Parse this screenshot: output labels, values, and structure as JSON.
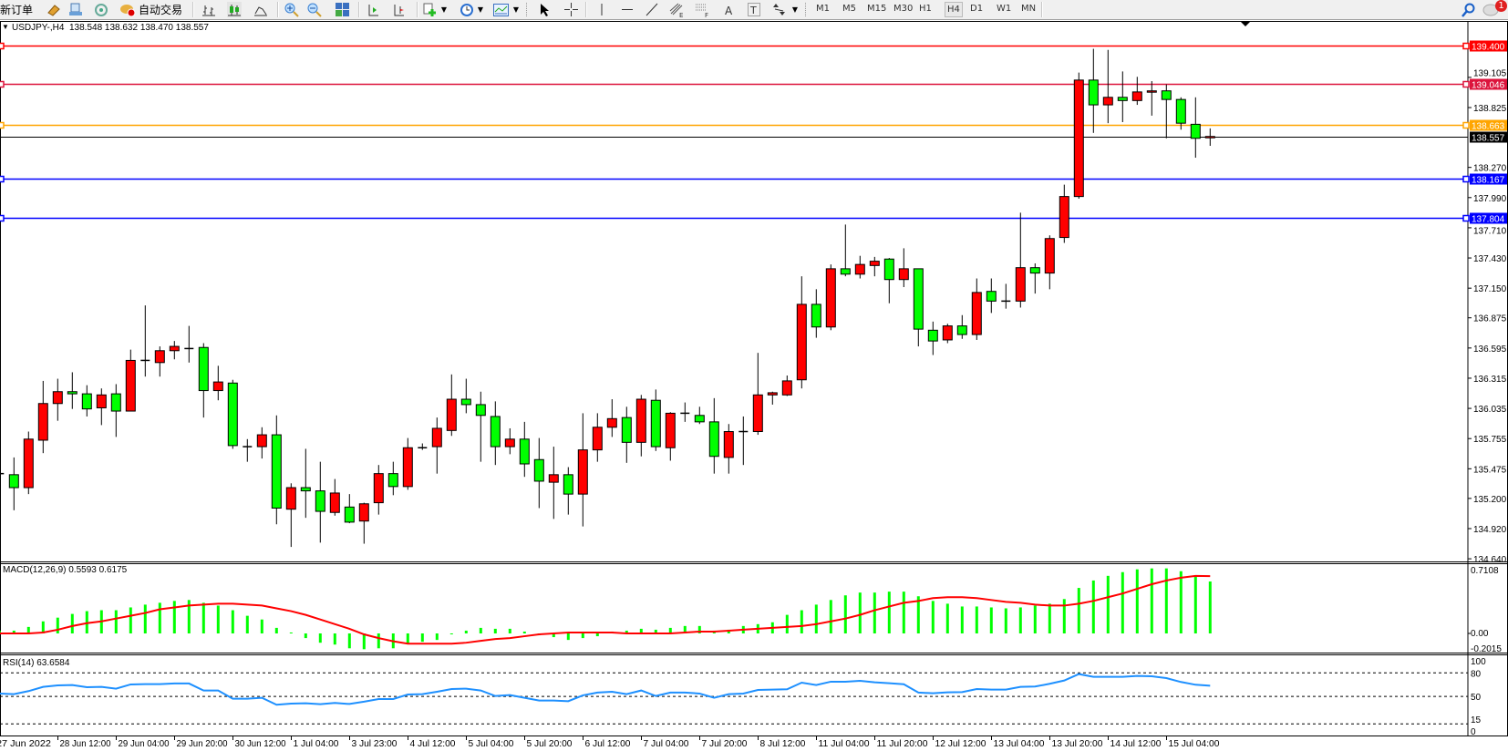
{
  "toolbar": {
    "new_order": "新订单",
    "autotrading": "自动交易",
    "icons": [
      "market-watch-icon",
      "navigator-icon",
      "signals-icon",
      "autotrading-icon",
      "bar-chart-icon",
      "candlestick-icon",
      "line-chart-icon",
      "zoom-in-icon",
      "zoom-out-icon",
      "tile-windows-icon",
      "auto-scroll-icon",
      "chart-shift-icon",
      "new-chart-icon",
      "periodicity-icon",
      "templates-icon",
      "cursor-icon",
      "crosshair-icon",
      "vertical-line-icon",
      "horizontal-line-icon",
      "trendline-icon",
      "fibonacci-expansion-icon",
      "fibonacci-fan-icon",
      "text-icon",
      "text-label-icon",
      "arrows-icon",
      "search-icon",
      "chat-icon"
    ],
    "timeframes": [
      "M1",
      "M5",
      "M15",
      "M30",
      "H1",
      "H4",
      "D1",
      "W1",
      "MN"
    ],
    "active_timeframe": "H4",
    "chat_badge": "1"
  },
  "chart": {
    "symbol_line": "USDJPY-,H4  138.548 138.632 138.470 138.557",
    "macd_label": "MACD(12,26,9) 0.5593 0.6175",
    "rsi_label": "RSI(14) 63.6584",
    "price_ticks": [
      "139.105",
      "138.825",
      "138.270",
      "137.990",
      "137.710",
      "137.430",
      "137.150",
      "136.875",
      "136.595",
      "136.315",
      "136.035",
      "135.755",
      "135.475",
      "135.200",
      "134.920",
      "134.640"
    ],
    "macd_ticks": [
      "0.7108",
      "0.00",
      "-0.2015"
    ],
    "rsi_ticks": [
      "100",
      "80",
      "50",
      "15",
      "0"
    ],
    "rsi_levels": [
      80,
      50,
      15
    ],
    "hlines": [
      {
        "price": "139.400",
        "color": "#ff0000"
      },
      {
        "price": "139.046",
        "color": "#dc143c"
      },
      {
        "price": "138.663",
        "color": "#ffa500"
      },
      {
        "price": "138.557",
        "color": "#000000"
      },
      {
        "price": "138.167",
        "color": "#0000ff"
      },
      {
        "price": "137.804",
        "color": "#0000ff"
      }
    ],
    "date_labels": [
      "27 Jun 2022",
      "28 Jun 12:00",
      "29 Jun 04:00",
      "29 Jun 20:00",
      "30 Jun 12:00",
      "1 Jul 04:00",
      "3 Jul 23:00",
      "4 Jul 12:00",
      "5 Jul 04:00",
      "5 Jul 20:00",
      "6 Jul 12:00",
      "7 Jul 04:00",
      "7 Jul 20:00",
      "8 Jul 12:00",
      "11 Jul 04:00",
      "11 Jul 20:00",
      "12 Jul 12:00",
      "13 Jul 04:00",
      "13 Jul 20:00",
      "14 Jul 12:00",
      "15 Jul 04:00"
    ],
    "colors": {
      "bull": "#ff0000",
      "bear": "#00ff00",
      "macd_hist": "#00ff00",
      "macd_signal": "#ff0000",
      "rsi": "#1e90ff"
    }
  },
  "chart_data": {
    "type": "candlestick",
    "symbol": "USDJPY-",
    "timeframe": "H4",
    "ylim": [
      134.64,
      139.4
    ],
    "ohlc": [
      [
        135.43,
        135.44,
        135.42,
        135.43
      ],
      [
        135.42,
        135.58,
        135.09,
        135.3
      ],
      [
        135.3,
        135.82,
        135.24,
        135.75
      ],
      [
        135.74,
        136.29,
        135.62,
        136.08
      ],
      [
        136.08,
        136.31,
        135.92,
        136.19
      ],
      [
        136.19,
        136.37,
        136.03,
        136.17
      ],
      [
        136.17,
        136.25,
        135.96,
        136.03
      ],
      [
        136.04,
        136.22,
        135.88,
        136.16
      ],
      [
        136.17,
        136.26,
        135.77,
        136.01
      ],
      [
        136.01,
        136.58,
        136.01,
        136.48
      ],
      [
        136.48,
        136.99,
        136.33,
        136.48
      ],
      [
        136.46,
        136.61,
        136.33,
        136.57
      ],
      [
        136.57,
        136.66,
        136.49,
        136.61
      ],
      [
        136.59,
        136.8,
        136.46,
        136.59
      ],
      [
        136.6,
        136.64,
        135.95,
        136.2
      ],
      [
        136.2,
        136.43,
        136.11,
        136.28
      ],
      [
        136.27,
        136.3,
        135.66,
        135.69
      ],
      [
        135.68,
        135.75,
        135.54,
        135.68
      ],
      [
        135.68,
        135.86,
        135.57,
        135.79
      ],
      [
        135.79,
        135.97,
        134.96,
        135.11
      ],
      [
        135.1,
        135.34,
        134.75,
        135.3
      ],
      [
        135.3,
        135.66,
        135.02,
        135.27
      ],
      [
        135.27,
        135.54,
        134.79,
        135.08
      ],
      [
        135.07,
        135.38,
        135.04,
        135.25
      ],
      [
        135.12,
        135.24,
        134.97,
        134.98
      ],
      [
        134.99,
        135.16,
        134.78,
        135.15
      ],
      [
        135.16,
        135.51,
        135.05,
        135.43
      ],
      [
        135.43,
        135.54,
        135.23,
        135.31
      ],
      [
        135.31,
        135.76,
        135.28,
        135.67
      ],
      [
        135.67,
        135.71,
        135.65,
        135.67
      ],
      [
        135.68,
        135.95,
        135.43,
        135.85
      ],
      [
        135.83,
        136.35,
        135.78,
        136.12
      ],
      [
        136.12,
        136.31,
        135.99,
        136.07
      ],
      [
        136.07,
        136.19,
        135.54,
        135.97
      ],
      [
        135.96,
        136.1,
        135.51,
        135.68
      ],
      [
        135.68,
        135.85,
        135.61,
        135.75
      ],
      [
        135.75,
        135.91,
        135.4,
        135.52
      ],
      [
        135.56,
        135.76,
        135.11,
        135.36
      ],
      [
        135.35,
        135.68,
        135.01,
        135.42
      ],
      [
        135.42,
        135.49,
        135.05,
        135.24
      ],
      [
        135.24,
        135.99,
        134.94,
        135.65
      ],
      [
        135.65,
        135.99,
        135.54,
        135.86
      ],
      [
        135.86,
        136.12,
        135.77,
        135.94
      ],
      [
        135.95,
        136.05,
        135.53,
        135.72
      ],
      [
        135.72,
        136.16,
        135.59,
        136.12
      ],
      [
        136.11,
        136.21,
        135.64,
        135.68
      ],
      [
        135.67,
        136.0,
        135.55,
        135.99
      ],
      [
        135.99,
        136.09,
        135.91,
        135.99
      ],
      [
        135.97,
        136.05,
        135.89,
        135.91
      ],
      [
        135.91,
        136.13,
        135.43,
        135.59
      ],
      [
        135.58,
        135.89,
        135.43,
        135.82
      ],
      [
        135.82,
        135.96,
        135.51,
        135.82
      ],
      [
        135.82,
        136.55,
        135.79,
        136.16
      ],
      [
        136.16,
        136.19,
        136.07,
        136.18
      ],
      [
        136.16,
        136.34,
        136.15,
        136.29
      ],
      [
        136.3,
        137.26,
        136.22,
        137.0
      ],
      [
        137.0,
        137.14,
        136.69,
        136.79
      ],
      [
        136.79,
        137.37,
        136.76,
        137.33
      ],
      [
        137.33,
        137.74,
        137.26,
        137.28
      ],
      [
        137.28,
        137.45,
        137.24,
        137.37
      ],
      [
        137.36,
        137.44,
        137.26,
        137.4
      ],
      [
        137.42,
        137.43,
        137.01,
        137.23
      ],
      [
        137.23,
        137.52,
        137.16,
        137.33
      ],
      [
        137.33,
        137.33,
        136.61,
        136.77
      ],
      [
        136.76,
        136.84,
        136.53,
        136.66
      ],
      [
        136.67,
        136.82,
        136.64,
        136.8
      ],
      [
        136.8,
        136.9,
        136.68,
        136.72
      ],
      [
        136.72,
        137.24,
        136.67,
        137.11
      ],
      [
        137.12,
        137.24,
        136.92,
        137.03
      ],
      [
        137.03,
        137.19,
        136.96,
        137.03
      ],
      [
        137.03,
        137.85,
        136.97,
        137.34
      ],
      [
        137.34,
        137.38,
        137.1,
        137.29
      ],
      [
        137.29,
        137.64,
        137.14,
        137.61
      ],
      [
        137.62,
        138.11,
        137.57,
        138.0
      ],
      [
        138.0,
        139.15,
        137.98,
        139.08
      ],
      [
        139.08,
        139.37,
        138.59,
        138.85
      ],
      [
        138.85,
        139.36,
        138.68,
        138.92
      ],
      [
        138.92,
        139.16,
        138.69,
        138.89
      ],
      [
        138.89,
        139.11,
        138.85,
        138.97
      ],
      [
        138.97,
        139.07,
        138.75,
        138.98
      ],
      [
        138.98,
        139.04,
        138.54,
        138.9
      ],
      [
        138.9,
        138.92,
        138.62,
        138.68
      ],
      [
        138.67,
        138.92,
        138.36,
        138.54
      ],
      [
        138.548,
        138.632,
        138.47,
        138.557
      ]
    ],
    "macd": {
      "ylim": [
        -0.2015,
        0.7108
      ],
      "main": [
        0.03,
        0.03,
        0.07,
        0.13,
        0.17,
        0.21,
        0.24,
        0.25,
        0.25,
        0.28,
        0.31,
        0.33,
        0.35,
        0.36,
        0.33,
        0.3,
        0.25,
        0.19,
        0.15,
        0.06,
        0.01,
        -0.05,
        -0.1,
        -0.12,
        -0.16,
        -0.17,
        -0.16,
        -0.16,
        -0.11,
        -0.09,
        -0.07,
        -0.01,
        0.03,
        0.06,
        0.05,
        0.05,
        0.02,
        -0.02,
        -0.04,
        -0.07,
        -0.05,
        -0.03,
        0.02,
        0.03,
        0.05,
        0.04,
        0.06,
        0.08,
        0.08,
        0.03,
        0.04,
        0.08,
        0.1,
        0.12,
        0.2,
        0.25,
        0.31,
        0.36,
        0.41,
        0.44,
        0.44,
        0.45,
        0.45,
        0.4,
        0.35,
        0.32,
        0.29,
        0.29,
        0.28,
        0.27,
        0.28,
        0.3,
        0.32,
        0.37,
        0.49,
        0.57,
        0.62,
        0.66,
        0.69,
        0.7,
        0.7,
        0.67,
        0.62,
        0.5593
      ],
      "signal": [
        0.0,
        0.0,
        0.0,
        0.01,
        0.04,
        0.08,
        0.11,
        0.13,
        0.16,
        0.19,
        0.22,
        0.26,
        0.28,
        0.3,
        0.31,
        0.32,
        0.32,
        0.31,
        0.3,
        0.27,
        0.24,
        0.2,
        0.15,
        0.1,
        0.05,
        -0.01,
        -0.05,
        -0.085,
        -0.11,
        -0.11,
        -0.11,
        -0.11,
        -0.1,
        -0.08,
        -0.06,
        -0.05,
        -0.03,
        -0.01,
        0.0,
        0.01,
        0.01,
        0.01,
        0.01,
        0.0,
        0.0,
        0.0,
        0.0,
        0.01,
        0.02,
        0.02,
        0.03,
        0.04,
        0.05,
        0.06,
        0.07,
        0.08,
        0.1,
        0.13,
        0.16,
        0.2,
        0.25,
        0.29,
        0.33,
        0.35,
        0.38,
        0.39,
        0.39,
        0.38,
        0.36,
        0.34,
        0.33,
        0.31,
        0.3,
        0.3,
        0.32,
        0.35,
        0.39,
        0.43,
        0.48,
        0.53,
        0.57,
        0.6,
        0.62,
        0.6175
      ]
    },
    "rsi": {
      "ylim": [
        0,
        100
      ],
      "values": [
        53.7,
        52.9,
        56.8,
        62.2,
        64.1,
        64.5,
        61.8,
        62.2,
        59.9,
        65.3,
        65.7,
        65.7,
        66.5,
        66.5,
        57.6,
        57.6,
        47.1,
        47.1,
        48.3,
        39.4,
        40.9,
        41.3,
        40.2,
        41.7,
        40.4,
        43.3,
        46.7,
        46.7,
        52.5,
        52.9,
        56.0,
        59.5,
        59.9,
        57.6,
        50.6,
        51.8,
        48.3,
        44.8,
        44.8,
        44.0,
        51.4,
        54.9,
        56.0,
        52.9,
        57.6,
        50.6,
        54.9,
        54.9,
        53.7,
        48.3,
        52.9,
        53.7,
        58.3,
        58.7,
        59.1,
        67.6,
        64.5,
        68.8,
        68.8,
        69.9,
        68.0,
        66.8,
        65.5,
        54.9,
        54.1,
        55.2,
        55.6,
        59.5,
        58.7,
        58.7,
        62.2,
        62.6,
        66.1,
        70.3,
        78.5,
        75.0,
        75.0,
        75.0,
        76.1,
        75.7,
        73.4,
        68.4,
        64.9,
        63.66
      ]
    }
  }
}
